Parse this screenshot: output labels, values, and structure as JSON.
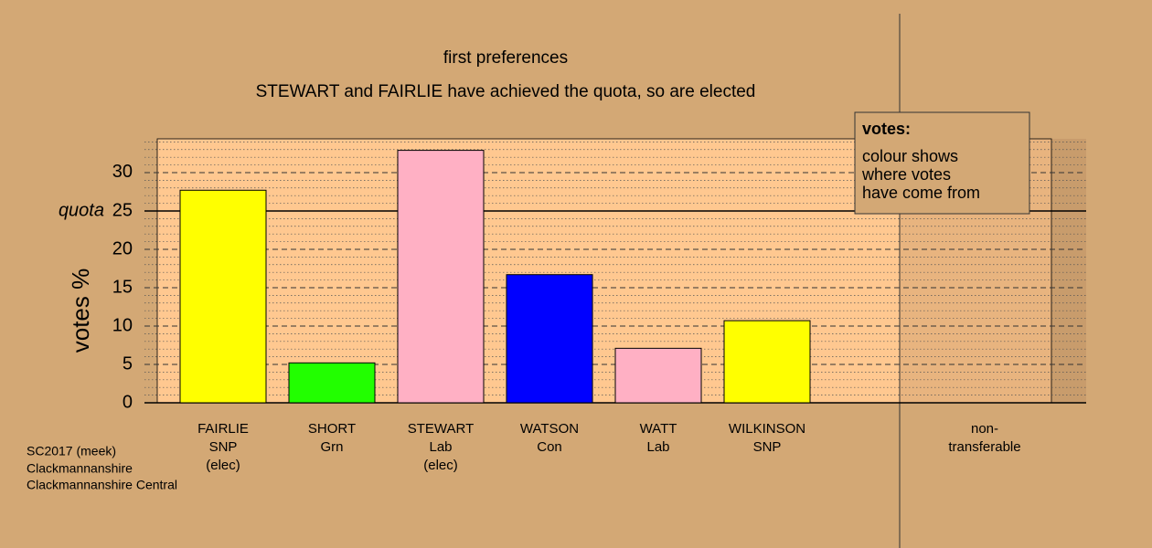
{
  "chart_data": {
    "type": "bar",
    "title": "first preferences",
    "subtitle": "STEWART and FAIRLIE have achieved the quota, so are elected",
    "y_label": "votes %",
    "categories": [
      "FAIRLIE",
      "SHORT",
      "STEWART",
      "WATSON",
      "WATT",
      "WILKINSON",
      "non-"
    ],
    "parties": [
      "SNP",
      "Grn",
      "Lab",
      "Con",
      "Lab",
      "SNP",
      "transferable"
    ],
    "status": [
      "(elec)",
      null,
      "(elec)",
      null,
      null,
      null,
      null
    ],
    "values": [
      27.7,
      5.2,
      32.9,
      16.7,
      7.1,
      10.7,
      0
    ],
    "colors": [
      "#ffff00",
      "#22ff00",
      "#ffb0c4",
      "#0000ff",
      "#ffb0c4",
      "#ffff00",
      "#d3a875"
    ],
    "ylim": [
      0,
      34.4
    ],
    "yticks": [
      0,
      5,
      10,
      15,
      20,
      25,
      30
    ],
    "minor_yticks": [
      1,
      2,
      3,
      4,
      6,
      7,
      8,
      9,
      11,
      12,
      13,
      14,
      16,
      17,
      18,
      19,
      21,
      22,
      23,
      24,
      26,
      27,
      28,
      29,
      31,
      32,
      33,
      34
    ],
    "grid": true,
    "quota": 25,
    "quota_label": "quota",
    "legend": {
      "title": "votes:",
      "lines": [
        "colour shows",
        "where votes",
        "have come from"
      ]
    },
    "notes": [
      "SC2017 (meek)",
      "Clackmannanshire",
      "Clackmannanshire Central"
    ]
  }
}
